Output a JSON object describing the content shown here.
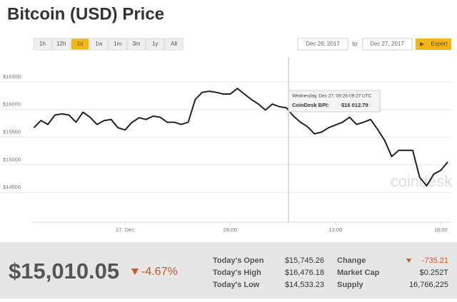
{
  "title": "Bitcoin (USD) Price",
  "range_buttons": [
    "1h",
    "12h",
    "1d",
    "1w",
    "1m",
    "3m",
    "1y",
    "All"
  ],
  "date_from": "Dec 26, 2017",
  "to": "to",
  "date_to": "Dec 27, 2017",
  "export": "Export",
  "watermark": "coindesk",
  "chart_data": {
    "type": "line",
    "x": [
      -5.2,
      -4.8,
      -4.4,
      -4.0,
      -3.6,
      -3.2,
      -2.8,
      -2.4,
      -2.0,
      -1.6,
      -1.2,
      -0.8,
      -0.4,
      0.0,
      0.4,
      0.8,
      1.2,
      1.6,
      2.0,
      2.4,
      2.8,
      3.2,
      3.6,
      4.0,
      4.4,
      4.8,
      5.2,
      5.6,
      6.0,
      6.4,
      6.8,
      7.2,
      7.6,
      8.0,
      8.4,
      8.8,
      9.2,
      9.6,
      10.0,
      10.4,
      10.8,
      11.2,
      11.6,
      12.0,
      12.4,
      12.8,
      13.2,
      13.6,
      14.0,
      14.4,
      14.8,
      15.2,
      15.6,
      16.0,
      16.4,
      16.8,
      17.2,
      17.6,
      18.0,
      18.4
    ],
    "series": [
      {
        "name": "CoinDesk BPI:",
        "color": "#222222",
        "values": [
          15670,
          15800,
          15730,
          15900,
          15920,
          15900,
          15770,
          15950,
          15860,
          15730,
          15800,
          15820,
          15670,
          15630,
          15770,
          15850,
          15820,
          15880,
          15860,
          15770,
          15770,
          15730,
          15770,
          16180,
          16310,
          16330,
          16310,
          16280,
          16280,
          16380,
          16280,
          16180,
          16100,
          15990,
          16100,
          16050,
          16030,
          15880,
          15770,
          15690,
          15560,
          15590,
          15670,
          15720,
          15770,
          15860,
          15730,
          15770,
          15820,
          15640,
          15440,
          15150,
          15260,
          15260,
          15260,
          14770,
          14620,
          14830,
          14900,
          15050
        ]
      }
    ],
    "xlim": [
      -5.3,
      18.6
    ],
    "xticks": [
      {
        "value": 0,
        "label": "27. Dec"
      },
      {
        "value": 6,
        "label": "06:00"
      },
      {
        "value": 12,
        "label": "12:00"
      },
      {
        "value": 18,
        "label": "18:00"
      }
    ],
    "ylim": [
      13960,
      16950
    ],
    "yticks": [
      {
        "value": 14500,
        "label": "$14500"
      },
      {
        "value": 15000,
        "label": "$15000"
      },
      {
        "value": 15500,
        "label": "$15500"
      },
      {
        "value": 16000,
        "label": "$16000"
      },
      {
        "value": 16500,
        "label": "$16500"
      }
    ],
    "grid": true,
    "tooltip": {
      "time": "Wednesday, Dec 27, 09:26-09:27 UTC",
      "label": "CoinDesk BPI:",
      "value": "$16 012.79"
    }
  },
  "summary": {
    "price": "$15,010.05",
    "change": "-4.67%",
    "stats": [
      {
        "label": "Today's Open",
        "value": "$15,745.26",
        "label2": "Change",
        "value2": "-735.21"
      },
      {
        "label": "Today's High",
        "value": "$16,476.18",
        "label2": "Market Cap",
        "value2": "$0.252T"
      },
      {
        "label": "Today's Low",
        "value": "$14,533.23",
        "label2": "Supply",
        "value2": "16,766,225"
      }
    ]
  }
}
